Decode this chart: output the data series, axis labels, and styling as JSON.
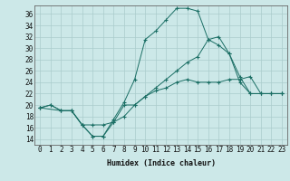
{
  "xlabel": "Humidex (Indice chaleur)",
  "background_color": "#cce8e8",
  "line_color": "#1a6e64",
  "grid_color": "#aacccc",
  "x_ticks": [
    0,
    1,
    2,
    3,
    4,
    5,
    6,
    7,
    8,
    9,
    10,
    11,
    12,
    13,
    14,
    15,
    16,
    17,
    18,
    19,
    20,
    21,
    22,
    23
  ],
  "y_ticks": [
    14,
    16,
    18,
    20,
    22,
    24,
    26,
    28,
    30,
    32,
    34,
    36
  ],
  "ylim": [
    13.0,
    37.5
  ],
  "xlim": [
    -0.5,
    23.5
  ],
  "line1_x": [
    0,
    1,
    2,
    3,
    4,
    5,
    6,
    7,
    8,
    9,
    10,
    11,
    12,
    13,
    14,
    15,
    16,
    17,
    18,
    19,
    20,
    21,
    22,
    23
  ],
  "line1_y": [
    19.5,
    20.0,
    19.0,
    19.0,
    16.5,
    16.5,
    16.5,
    17.0,
    20.0,
    20.0,
    21.5,
    22.5,
    23.0,
    24.0,
    24.5,
    24.0,
    24.0,
    24.0,
    24.5,
    24.5,
    25.0,
    22.0,
    22.0,
    22.0
  ],
  "line2_x": [
    0,
    1,
    2,
    3,
    4,
    5,
    6,
    7,
    8,
    9,
    10,
    11,
    12,
    13,
    14,
    15,
    16,
    17,
    18,
    19,
    20,
    21,
    22,
    23
  ],
  "line2_y": [
    19.5,
    20.0,
    19.0,
    19.0,
    16.5,
    14.5,
    14.5,
    17.5,
    20.5,
    24.5,
    31.5,
    33.0,
    35.0,
    37.0,
    37.0,
    36.5,
    31.5,
    30.5,
    29.0,
    24.0,
    22.0,
    22.0,
    22.0,
    22.0
  ],
  "line3_x": [
    0,
    2,
    3,
    4,
    5,
    6,
    7,
    8,
    9,
    10,
    11,
    12,
    13,
    14,
    15,
    16,
    17,
    18,
    19,
    20,
    21,
    22,
    23
  ],
  "line3_y": [
    19.5,
    19.0,
    19.0,
    16.5,
    14.5,
    14.5,
    17.0,
    18.0,
    20.0,
    21.5,
    23.0,
    24.5,
    26.0,
    27.5,
    28.5,
    31.5,
    32.0,
    29.0,
    25.0,
    22.0,
    22.0,
    22.0,
    22.0
  ]
}
